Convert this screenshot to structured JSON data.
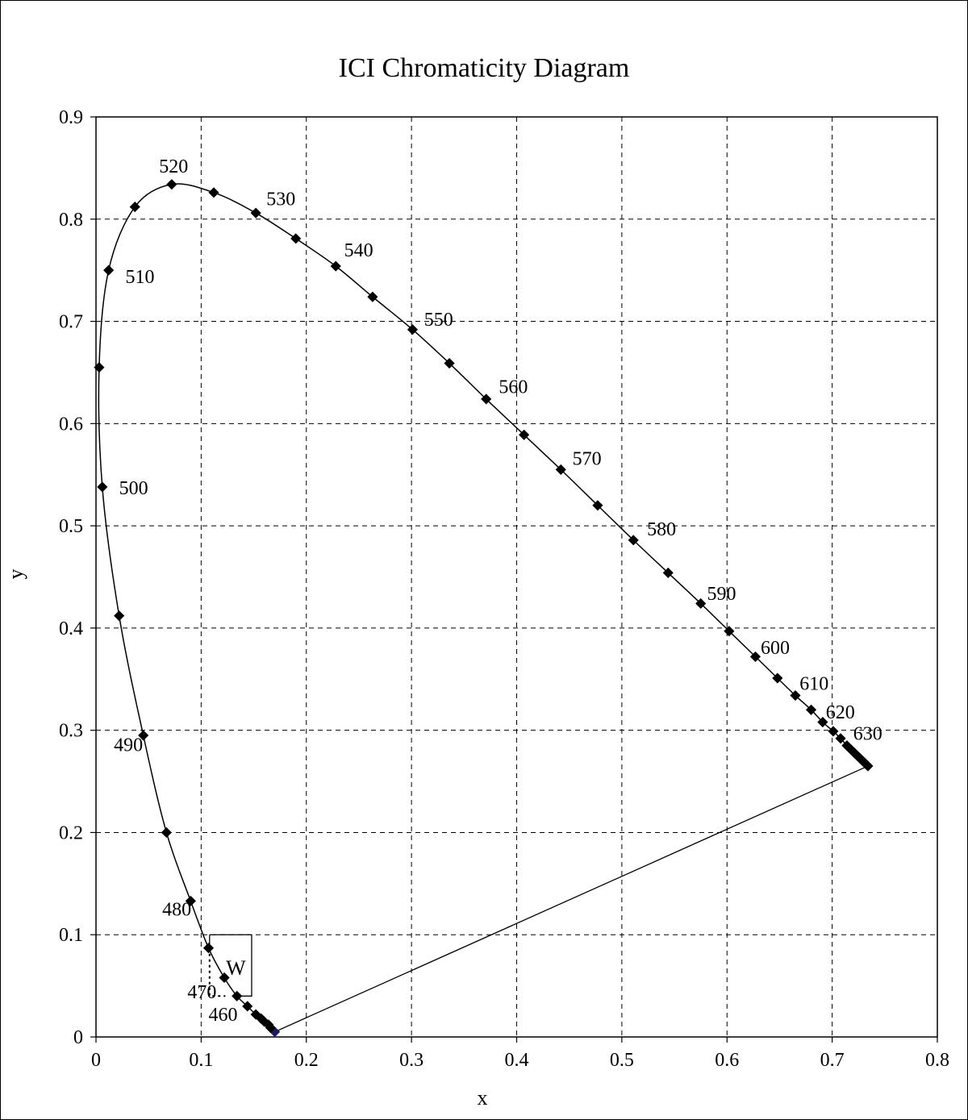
{
  "chart_data": {
    "type": "scatter",
    "title": "ICI Chromaticity Diagram",
    "xlabel": "x",
    "ylabel": "y",
    "xlim": [
      0,
      0.8
    ],
    "ylim": [
      0,
      0.9
    ],
    "x_ticks": [
      "0",
      "0.1",
      "0.2",
      "0.3",
      "0.4",
      "0.5",
      "0.6",
      "0.7",
      "0.8"
    ],
    "y_ticks": [
      "0",
      "0.1",
      "0.2",
      "0.3",
      "0.4",
      "0.5",
      "0.6",
      "0.7",
      "0.8",
      "0.9"
    ],
    "grid": true,
    "legend": "none",
    "series": [
      {
        "marker": "diamond",
        "color": "#000000",
        "points": [
          [
            0.17,
            0.005
          ],
          [
            0.166,
            0.009
          ],
          [
            0.164,
            0.012
          ],
          [
            0.16,
            0.015
          ],
          [
            0.157,
            0.018
          ],
          [
            0.152,
            0.022
          ],
          [
            0.144,
            0.03
          ],
          [
            0.134,
            0.04
          ],
          [
            0.122,
            0.058
          ],
          [
            0.107,
            0.087
          ],
          [
            0.09,
            0.133
          ],
          [
            0.067,
            0.2
          ],
          [
            0.045,
            0.295
          ],
          [
            0.022,
            0.412
          ],
          [
            0.006,
            0.538
          ],
          [
            0.003,
            0.655
          ],
          [
            0.012,
            0.75
          ],
          [
            0.037,
            0.812
          ],
          [
            0.072,
            0.834
          ],
          [
            0.112,
            0.826
          ],
          [
            0.152,
            0.806
          ],
          [
            0.19,
            0.781
          ],
          [
            0.228,
            0.754
          ],
          [
            0.263,
            0.724
          ],
          [
            0.301,
            0.692
          ],
          [
            0.336,
            0.659
          ],
          [
            0.371,
            0.624
          ],
          [
            0.407,
            0.589
          ],
          [
            0.442,
            0.555
          ],
          [
            0.477,
            0.52
          ],
          [
            0.511,
            0.486
          ],
          [
            0.544,
            0.454
          ],
          [
            0.575,
            0.424
          ],
          [
            0.602,
            0.397
          ],
          [
            0.627,
            0.372
          ],
          [
            0.648,
            0.351
          ],
          [
            0.665,
            0.334
          ],
          [
            0.68,
            0.32
          ],
          [
            0.691,
            0.308
          ],
          [
            0.701,
            0.299
          ],
          [
            0.708,
            0.292
          ],
          [
            0.714,
            0.285
          ],
          [
            0.718,
            0.281
          ],
          [
            0.721,
            0.278
          ],
          [
            0.724,
            0.275
          ],
          [
            0.726,
            0.273
          ],
          [
            0.728,
            0.271
          ],
          [
            0.73,
            0.269
          ],
          [
            0.731,
            0.268
          ],
          [
            0.733,
            0.266
          ],
          [
            0.734,
            0.265
          ]
        ]
      }
    ],
    "closing_line": {
      "from": [
        0.734,
        0.265
      ],
      "to": [
        0.17,
        0.005
      ]
    },
    "wavelength_labels": [
      {
        "text": "460",
        "x": 0.107,
        "y": 0.022
      },
      {
        "text": "470",
        "x": 0.087,
        "y": 0.044
      },
      {
        "text": "480",
        "x": 0.063,
        "y": 0.125
      },
      {
        "text": "490",
        "x": 0.017,
        "y": 0.286
      },
      {
        "text": "500",
        "x": 0.022,
        "y": 0.537
      },
      {
        "text": "510",
        "x": 0.028,
        "y": 0.744
      },
      {
        "text": "520",
        "x": 0.06,
        "y": 0.852
      },
      {
        "text": "530",
        "x": 0.162,
        "y": 0.82
      },
      {
        "text": "540",
        "x": 0.236,
        "y": 0.77
      },
      {
        "text": "550",
        "x": 0.312,
        "y": 0.702
      },
      {
        "text": "560",
        "x": 0.383,
        "y": 0.636
      },
      {
        "text": "570",
        "x": 0.453,
        "y": 0.566
      },
      {
        "text": "580",
        "x": 0.524,
        "y": 0.497
      },
      {
        "text": "590",
        "x": 0.581,
        "y": 0.434
      },
      {
        "text": "600",
        "x": 0.632,
        "y": 0.381
      },
      {
        "text": "610",
        "x": 0.669,
        "y": 0.346
      },
      {
        "text": "620",
        "x": 0.694,
        "y": 0.318
      },
      {
        "text": "630",
        "x": 0.72,
        "y": 0.297
      }
    ],
    "annotation_box": {
      "label": "W",
      "label_x": 0.133,
      "label_y": 0.068,
      "solid_box": {
        "x0": 0.108,
        "x1": 0.148,
        "y0": 0.04,
        "y1": 0.1
      },
      "dashed_corner": {
        "x0": 0.108,
        "x1": 0.123,
        "y0": 0.04,
        "y1": 0.087
      }
    }
  }
}
